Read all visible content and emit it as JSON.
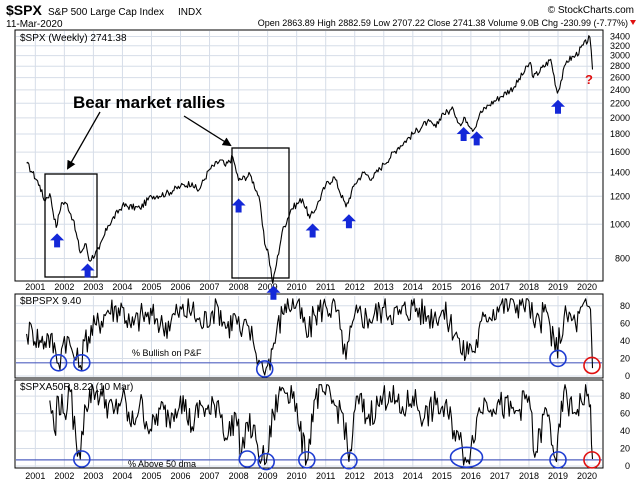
{
  "header": {
    "symbol": "$SPX",
    "name": "S&P 500 Large Cap Index",
    "exchange": "INDX",
    "date": "11-Mar-2020",
    "watermark": "© StockCharts.com",
    "ohlc": "Open 2863.89   High 2882.59   Low 2707.22   Close 2741.38   Volume 9.0B   Chg -230.99 (-7.77%)"
  },
  "colors": {
    "price": "#000000",
    "arrow": "#1428d8",
    "annotation_box": "#000000",
    "circle_blue": "#1e3cd2",
    "circle_red": "#e01010",
    "question": "#e01010",
    "grid": "#d6dde8",
    "threshold_line": "#5060c0"
  },
  "chart_data": [
    {
      "type": "line",
      "title": "$SPX (Weekly) 2741.38",
      "scale": "log",
      "ylim": [
        700,
        3500
      ],
      "y_ticks": [
        800,
        1000,
        1200,
        1400,
        1600,
        1800,
        2000,
        2200,
        2400,
        2600,
        2800,
        3000,
        3200,
        3400
      ],
      "x_ticks": [
        "2001",
        "2002",
        "2003",
        "2004",
        "2005",
        "2006",
        "2007",
        "2008",
        "2009",
        "2010",
        "2011",
        "2012",
        "2013",
        "2014",
        "2015",
        "2016",
        "2017",
        "2018",
        "2019",
        "2020"
      ],
      "series": [
        {
          "x": [
            2000.7,
            2000.9,
            2001.15,
            2001.3,
            2001.5,
            2001.72,
            2001.9,
            2002.1,
            2002.3,
            2002.55,
            2002.75,
            2002.85,
            2003.2,
            2003.5,
            2004.0,
            2004.6,
            2005.0,
            2005.5,
            2006.0,
            2006.4,
            2006.6,
            2007.0,
            2007.4,
            2007.55,
            2007.8,
            2008.0,
            2008.4,
            2008.7,
            2008.9,
            2009.0,
            2009.18,
            2009.5,
            2009.8,
            2010.2,
            2010.45,
            2010.7,
            2011.0,
            2011.3,
            2011.7,
            2012.0,
            2012.3,
            2012.6,
            2013.0,
            2013.5,
            2014.0,
            2014.5,
            2014.8,
            2015.0,
            2015.4,
            2015.65,
            2015.8,
            2016.1,
            2016.3,
            2016.6,
            2017.0,
            2017.5,
            2018.05,
            2018.15,
            2018.75,
            2018.98,
            2019.3,
            2019.6,
            2020.1,
            2020.19
          ],
          "values": [
            1490,
            1400,
            1290,
            1170,
            1220,
            980,
            1150,
            1140,
            1030,
            830,
            880,
            790,
            850,
            990,
            1130,
            1110,
            1200,
            1220,
            1280,
            1310,
            1240,
            1430,
            1520,
            1460,
            1550,
            1330,
            1380,
            1200,
            880,
            850,
            680,
            950,
            1100,
            1180,
            1040,
            1130,
            1290,
            1360,
            1120,
            1300,
            1400,
            1350,
            1480,
            1650,
            1800,
            1950,
            1880,
            2050,
            2110,
            1900,
            2000,
            1850,
            2050,
            2170,
            2290,
            2450,
            2870,
            2600,
            2930,
            2350,
            2900,
            3000,
            3380,
            2741
          ]
        }
      ],
      "annotations": [
        "Bear market rallies",
        "?"
      ]
    },
    {
      "type": "line",
      "title": "$BPSPX 9.40",
      "ylim": [
        0,
        90
      ],
      "y_ticks": [
        0,
        20,
        40,
        60,
        80
      ],
      "threshold": 15,
      "series": [
        {
          "x": [
            2000.7,
            2000.9,
            2001.2,
            2001.45,
            2001.7,
            2001.8,
            2002.0,
            2002.2,
            2002.4,
            2002.55,
            2002.7,
            2003.1,
            2003.5,
            2004.0,
            2004.3,
            2004.7,
            2005.2,
            2005.4,
            2005.9,
            2006.4,
            2006.7,
            2007.1,
            2007.3,
            2007.6,
            2007.9,
            2008.1,
            2008.3,
            2008.5,
            2008.7,
            2008.85,
            2009.0,
            2009.3,
            2009.6,
            2010.0,
            2010.4,
            2010.6,
            2011.0,
            2011.4,
            2011.6,
            2011.8,
            2012.1,
            2012.5,
            2013.0,
            2013.5,
            2014.0,
            2014.5,
            2015.0,
            2015.5,
            2015.7,
            2016.0,
            2016.1,
            2016.5,
            2017.0,
            2017.5,
            2018.0,
            2018.2,
            2018.6,
            2018.9,
            2019.3,
            2019.6,
            2020.0,
            2020.12,
            2020.19
          ],
          "values": [
            48,
            52,
            38,
            46,
            28,
            14,
            45,
            35,
            18,
            12,
            40,
            58,
            75,
            78,
            55,
            70,
            65,
            55,
            72,
            75,
            58,
            74,
            78,
            55,
            68,
            45,
            58,
            40,
            18,
            6,
            12,
            48,
            82,
            82,
            45,
            70,
            80,
            75,
            25,
            40,
            72,
            65,
            78,
            70,
            80,
            68,
            74,
            50,
            24,
            35,
            28,
            70,
            80,
            82,
            85,
            55,
            74,
            28,
            70,
            60,
            80,
            76,
            9
          ]
        }
      ],
      "label": "% Bullish on P&F"
    },
    {
      "type": "line",
      "title": "$SPXA50R 8.22 (10 Mar)",
      "ylim": [
        0,
        95
      ],
      "y_ticks": [
        0,
        20,
        40,
        60,
        80
      ],
      "threshold": 7,
      "series": [
        {
          "x": [
            2001.5,
            2001.7,
            2001.75,
            2002.0,
            2002.2,
            2002.4,
            2002.55,
            2002.7,
            2003.0,
            2003.3,
            2003.7,
            2004.0,
            2004.3,
            2004.6,
            2005.0,
            2005.3,
            2005.6,
            2006.0,
            2006.4,
            2006.7,
            2007.0,
            2007.3,
            2007.6,
            2007.9,
            2008.1,
            2008.3,
            2008.6,
            2008.8,
            2008.95,
            2009.2,
            2009.5,
            2009.9,
            2010.1,
            2010.35,
            2010.6,
            2010.9,
            2011.3,
            2011.6,
            2011.8,
            2012.1,
            2012.4,
            2012.8,
            2013.2,
            2013.6,
            2014.0,
            2014.4,
            2014.8,
            2015.2,
            2015.6,
            2015.8,
            2016.0,
            2016.2,
            2016.5,
            2017.0,
            2017.5,
            2018.0,
            2018.2,
            2018.6,
            2018.95,
            2019.2,
            2019.5,
            2019.8,
            2020.0,
            2020.12,
            2020.19
          ],
          "values": [
            75,
            35,
            80,
            60,
            85,
            30,
            8,
            70,
            88,
            80,
            60,
            80,
            45,
            72,
            40,
            65,
            55,
            80,
            45,
            70,
            60,
            75,
            30,
            60,
            15,
            50,
            30,
            8,
            4,
            60,
            90,
            85,
            40,
            6,
            75,
            85,
            70,
            60,
            5,
            80,
            55,
            70,
            85,
            60,
            80,
            55,
            70,
            60,
            30,
            10,
            20,
            55,
            75,
            70,
            60,
            80,
            10,
            65,
            5,
            85,
            60,
            75,
            80,
            70,
            8
          ]
        }
      ],
      "label": "% Above 50 dma"
    }
  ]
}
